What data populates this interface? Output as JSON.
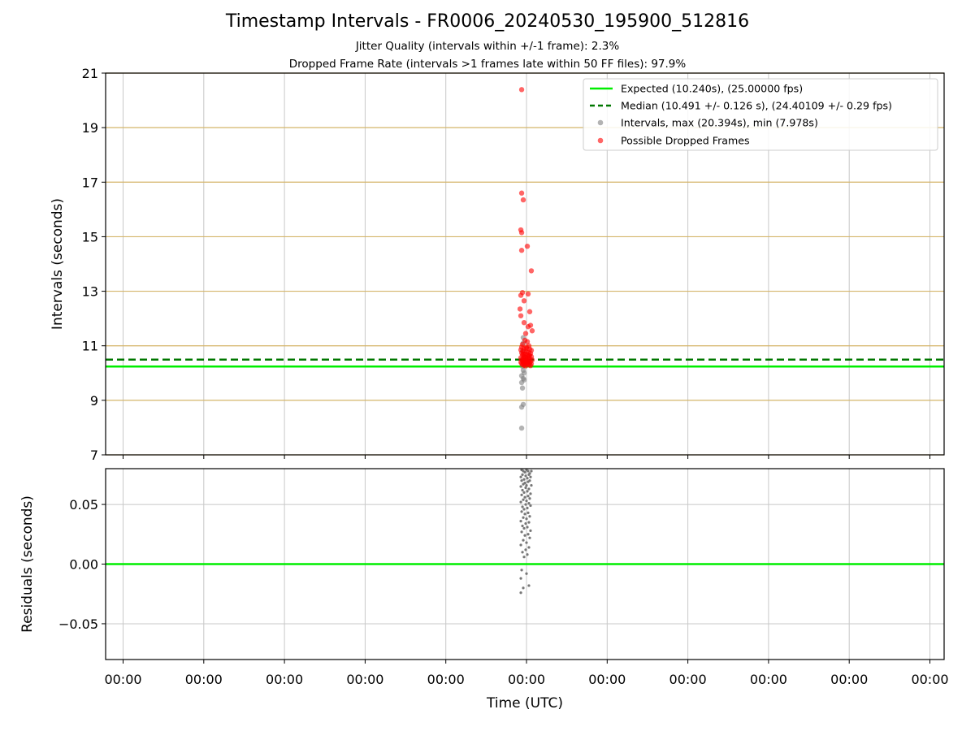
{
  "title": "Timestamp Intervals - FR0006_20240530_195900_512816",
  "subtitle_lines": [
    "Jitter Quality (intervals within +/-1 frame): 2.3%",
    "Dropped Frame Rate (intervals >1 frames late within 50 FF files): 97.9%"
  ],
  "colors": {
    "expected": "#00ee00",
    "median": "#007700",
    "intervals": "#808080",
    "dropped": "#ff0000",
    "hgrid_top": "#d4b56a",
    "grid": "#c8c8c8"
  },
  "chart_data": [
    {
      "type": "scatter",
      "panel": "intervals",
      "ylabel": "Intervals (seconds)",
      "ylim": [
        7,
        21
      ],
      "y_ticks": [
        "21",
        "19",
        "17",
        "15",
        "13",
        "11",
        "9",
        "7"
      ],
      "grid": true,
      "legend_position": "top-right",
      "lines": [
        {
          "name": "Expected (10.240s), (25.00000 fps)",
          "y": 10.24,
          "style": "solid"
        },
        {
          "name": "Median (10.491 +/- 0.126 s), (24.40109 +/- 0.29 fps)",
          "y": 10.491,
          "style": "dashed"
        }
      ],
      "series": [
        {
          "name": "Intervals, max (20.394s), min (7.978s)",
          "points": [
            [
              4.96,
              11.3
            ],
            [
              4.96,
              11.1
            ],
            [
              4.95,
              10.8
            ],
            [
              4.97,
              10.6
            ],
            [
              4.96,
              10.4
            ],
            [
              4.95,
              10.25
            ],
            [
              4.96,
              10.1
            ],
            [
              4.97,
              10.0
            ],
            [
              4.94,
              9.9
            ],
            [
              4.96,
              9.8
            ],
            [
              4.97,
              9.75
            ],
            [
              4.94,
              9.65
            ],
            [
              4.95,
              9.45
            ],
            [
              4.96,
              8.85
            ],
            [
              4.94,
              8.75
            ],
            [
              4.94,
              7.98
            ]
          ]
        },
        {
          "name": "Possible Dropped Frames",
          "points": [
            [
              4.94,
              20.394
            ],
            [
              4.94,
              16.6
            ],
            [
              4.96,
              16.35
            ],
            [
              4.93,
              15.25
            ],
            [
              4.94,
              15.15
            ],
            [
              5.01,
              14.65
            ],
            [
              4.94,
              14.5
            ],
            [
              5.06,
              13.75
            ],
            [
              4.95,
              12.95
            ],
            [
              5.02,
              12.9
            ],
            [
              4.93,
              12.85
            ],
            [
              4.97,
              12.65
            ],
            [
              4.92,
              12.35
            ],
            [
              5.04,
              12.25
            ],
            [
              4.93,
              12.1
            ],
            [
              4.97,
              11.85
            ],
            [
              5.02,
              11.7
            ],
            [
              5.05,
              11.75
            ],
            [
              5.07,
              11.55
            ],
            [
              4.99,
              11.45
            ],
            [
              4.98,
              11.2
            ],
            [
              5.01,
              11.15
            ],
            [
              4.95,
              11.05
            ],
            [
              5.03,
              11.0
            ],
            [
              5.0,
              10.95
            ],
            [
              4.97,
              10.9
            ],
            [
              5.04,
              10.88
            ],
            [
              4.93,
              10.85
            ],
            [
              5.06,
              10.83
            ],
            [
              4.96,
              10.8
            ],
            [
              5.0,
              10.78
            ],
            [
              5.02,
              10.76
            ],
            [
              4.94,
              10.74
            ],
            [
              5.05,
              10.72
            ],
            [
              4.98,
              10.7
            ],
            [
              5.01,
              10.68
            ],
            [
              4.95,
              10.66
            ],
            [
              5.03,
              10.64
            ],
            [
              4.97,
              10.62
            ],
            [
              5.06,
              10.6
            ],
            [
              4.99,
              10.58
            ],
            [
              4.93,
              10.56
            ],
            [
              5.02,
              10.55
            ],
            [
              4.96,
              10.53
            ],
            [
              5.04,
              10.52
            ],
            [
              5.0,
              10.5
            ],
            [
              4.94,
              10.49
            ],
            [
              5.07,
              10.48
            ],
            [
              4.98,
              10.47
            ],
            [
              5.01,
              10.46
            ],
            [
              4.95,
              10.45
            ],
            [
              5.03,
              10.44
            ],
            [
              4.97,
              10.43
            ],
            [
              5.05,
              10.42
            ],
            [
              4.99,
              10.41
            ],
            [
              4.93,
              10.4
            ],
            [
              5.02,
              10.39
            ],
            [
              4.96,
              10.38
            ],
            [
              5.04,
              10.37
            ],
            [
              5.0,
              10.36
            ],
            [
              4.94,
              10.35
            ],
            [
              5.06,
              10.34
            ],
            [
              4.98,
              10.33
            ],
            [
              5.01,
              10.32
            ],
            [
              4.95,
              10.31
            ],
            [
              5.03,
              10.3
            ],
            [
              4.97,
              10.28
            ],
            [
              5.05,
              10.27
            ],
            [
              4.99,
              10.26
            ],
            [
              4.96,
              10.7
            ],
            [
              5.0,
              10.9
            ],
            [
              5.02,
              10.6
            ],
            [
              4.98,
              10.55
            ],
            [
              5.04,
              10.65
            ],
            [
              4.94,
              10.95
            ]
          ]
        }
      ]
    },
    {
      "type": "scatter",
      "panel": "residuals",
      "ylabel": "Residuals (seconds)",
      "xlabel": "Time (UTC)",
      "ylim": [
        -0.08,
        0.08
      ],
      "y_ticks": [
        "0.05",
        "0.00",
        "−0.05"
      ],
      "x_ticks": [
        "00:00",
        "00:00",
        "00:00",
        "00:00",
        "00:00",
        "00:00",
        "00:00",
        "00:00",
        "00:00",
        "00:00",
        "00:00"
      ],
      "grid": true,
      "lines": [
        {
          "y": 0.0,
          "style": "solid"
        }
      ],
      "series": [
        {
          "points": [
            [
              4.94,
              0.079
            ],
            [
              4.96,
              0.078
            ],
            [
              4.98,
              0.077
            ],
            [
              5.0,
              0.079
            ],
            [
              5.02,
              0.078
            ],
            [
              5.04,
              0.076
            ],
            [
              5.06,
              0.078
            ],
            [
              4.95,
              0.075
            ],
            [
              4.99,
              0.074
            ],
            [
              5.03,
              0.075
            ],
            [
              4.93,
              0.073
            ],
            [
              5.01,
              0.072
            ],
            [
              5.05,
              0.073
            ],
            [
              4.97,
              0.071
            ],
            [
              4.94,
              0.07
            ],
            [
              5.02,
              0.069
            ],
            [
              4.98,
              0.068
            ],
            [
              5.04,
              0.07
            ],
            [
              4.96,
              0.067
            ],
            [
              5.0,
              0.066
            ],
            [
              4.93,
              0.065
            ],
            [
              5.06,
              0.066
            ],
            [
              4.99,
              0.064
            ],
            [
              5.03,
              0.063
            ],
            [
              4.95,
              0.062
            ],
            [
              5.01,
              0.061
            ],
            [
              4.97,
              0.06
            ],
            [
              5.05,
              0.059
            ],
            [
              4.94,
              0.058
            ],
            [
              5.02,
              0.057
            ],
            [
              4.98,
              0.056
            ],
            [
              5.04,
              0.055
            ],
            [
              4.96,
              0.054
            ],
            [
              5.0,
              0.053
            ],
            [
              4.93,
              0.052
            ],
            [
              5.03,
              0.051
            ],
            [
              4.99,
              0.05
            ],
            [
              5.05,
              0.049
            ],
            [
              4.95,
              0.048
            ],
            [
              5.01,
              0.047
            ],
            [
              4.97,
              0.046
            ],
            [
              4.94,
              0.044
            ],
            [
              5.02,
              0.043
            ],
            [
              4.98,
              0.042
            ],
            [
              5.04,
              0.04
            ],
            [
              4.96,
              0.039
            ],
            [
              5.0,
              0.038
            ],
            [
              4.93,
              0.036
            ],
            [
              5.03,
              0.035
            ],
            [
              4.99,
              0.034
            ],
            [
              4.95,
              0.032
            ],
            [
              5.01,
              0.031
            ],
            [
              4.97,
              0.03
            ],
            [
              5.05,
              0.028
            ],
            [
              4.94,
              0.027
            ],
            [
              5.02,
              0.025
            ],
            [
              4.98,
              0.024
            ],
            [
              5.04,
              0.022
            ],
            [
              4.96,
              0.02
            ],
            [
              5.0,
              0.018
            ],
            [
              4.93,
              0.016
            ],
            [
              5.03,
              0.014
            ],
            [
              4.99,
              0.012
            ],
            [
              4.95,
              0.01
            ],
            [
              5.01,
              0.008
            ],
            [
              4.97,
              0.006
            ],
            [
              4.94,
              -0.005
            ],
            [
              5.0,
              -0.008
            ],
            [
              4.93,
              -0.012
            ],
            [
              5.03,
              -0.018
            ],
            [
              4.96,
              -0.02
            ],
            [
              4.93,
              -0.024
            ]
          ]
        }
      ]
    }
  ]
}
